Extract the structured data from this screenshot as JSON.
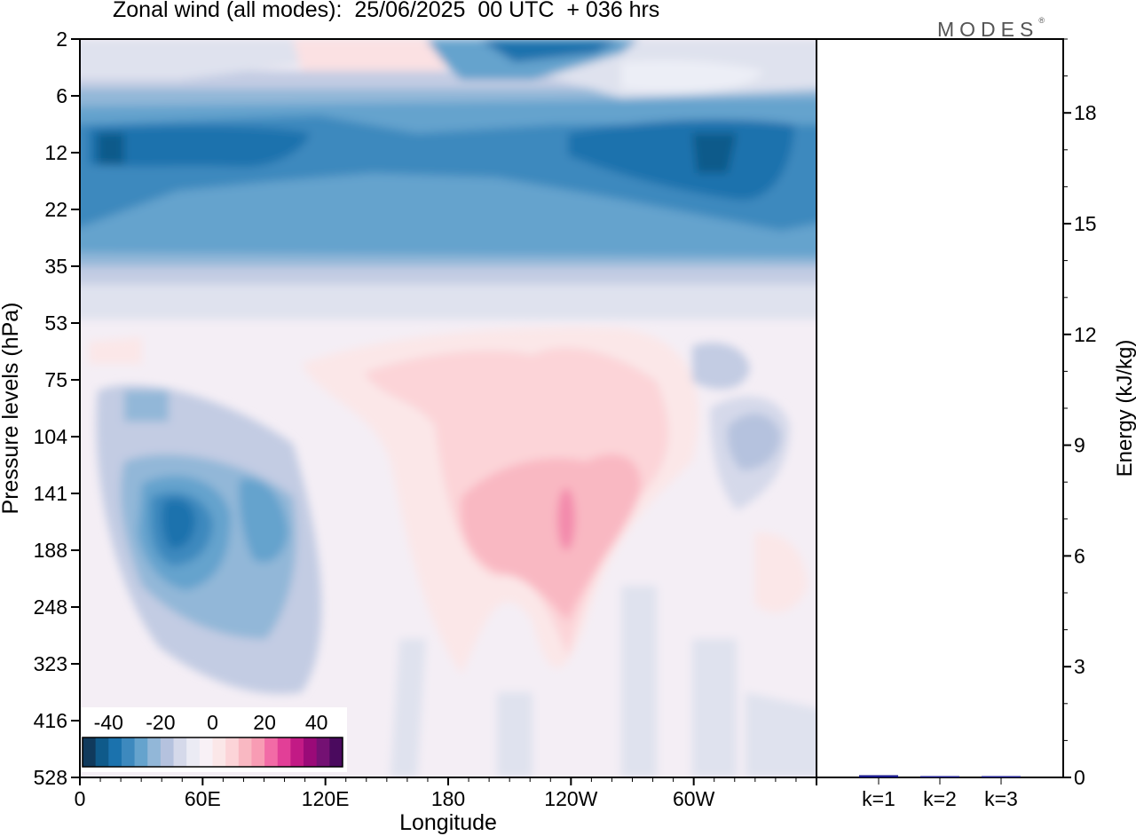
{
  "title": "Zonal wind (all modes):  25/06/2025  00 UTC  + 036 hrs",
  "brand": "MODES",
  "brand_mark": "®",
  "chart_data": [
    {
      "type": "heatmap",
      "variable": "Zonal wind",
      "xlabel": "Longitude",
      "ylabel": "Pressure levels (hPa)",
      "x_ticks": [
        "0",
        "60E",
        "120E",
        "180",
        "120W",
        "60W"
      ],
      "x_tick_values": [
        0,
        60,
        120,
        180,
        240,
        300
      ],
      "xlim": [
        0,
        360
      ],
      "y_ticks": [
        "2",
        "6",
        "12",
        "22",
        "35",
        "53",
        "75",
        "104",
        "141",
        "188",
        "248",
        "323",
        "416",
        "528"
      ],
      "y_scale": "pressure levels (inverted, non-linear)",
      "colorbar": {
        "ticks": [
          "-40",
          "-20",
          "0",
          "20",
          "40"
        ],
        "tick_values": [
          -40,
          -20,
          0,
          20,
          40
        ],
        "colors": [
          "#103a5c",
          "#0f5a8a",
          "#1b72ad",
          "#3d89be",
          "#65a3cd",
          "#92b7d8",
          "#b5c2de",
          "#d5d9ea",
          "#ebebf4",
          "#f8f1f6",
          "#fbe7e8",
          "#fcd4d8",
          "#f9b8c2",
          "#f89cb4",
          "#f26ba6",
          "#e23f97",
          "#c21a85",
          "#9a0a78",
          "#741173",
          "#4a0a5e"
        ]
      },
      "field_features": [
        {
          "lon": [
            0,
            360
          ],
          "level": "6-35",
          "value": -20,
          "note": "stratospheric easterly band"
        },
        {
          "lon": [
            0,
            360
          ],
          "level": "12",
          "value": -28,
          "note": "strongest easterlies near 12 hPa"
        },
        {
          "lon": [
            165,
            300
          ],
          "level": "2",
          "value": -32,
          "note": "easterly maximum at top"
        },
        {
          "lon": [
            110,
            150
          ],
          "level": "2-6",
          "value": 8,
          "note": "weak westerlies at top"
        },
        {
          "lon": [
            20,
            110
          ],
          "level": "104-416",
          "value": -20,
          "note": "upper-tropospheric easterly jet"
        },
        {
          "lon": [
            40,
            70
          ],
          "level": "141-188",
          "value": -32,
          "note": "easterly core"
        },
        {
          "lon": [
            175,
            300
          ],
          "level": "75-416",
          "value": 10,
          "note": "westerly region"
        },
        {
          "lon": [
            228,
            242
          ],
          "level": "141-188",
          "value": 18,
          "note": "westerly core"
        },
        {
          "lon": [
            305,
            350
          ],
          "level": "75-141",
          "value": -8,
          "note": "weak easterly patches"
        }
      ]
    },
    {
      "type": "bar",
      "categories": [
        "k=1",
        "k=2",
        "k=3"
      ],
      "values": [
        0.06,
        0.02,
        0.02
      ],
      "ylabel": "Energy (kJ/kg)",
      "ylim": [
        0,
        20
      ],
      "y_ticks": [
        0,
        3,
        6,
        9,
        12,
        15,
        18
      ],
      "bar_color": "#1a1a8c"
    }
  ]
}
